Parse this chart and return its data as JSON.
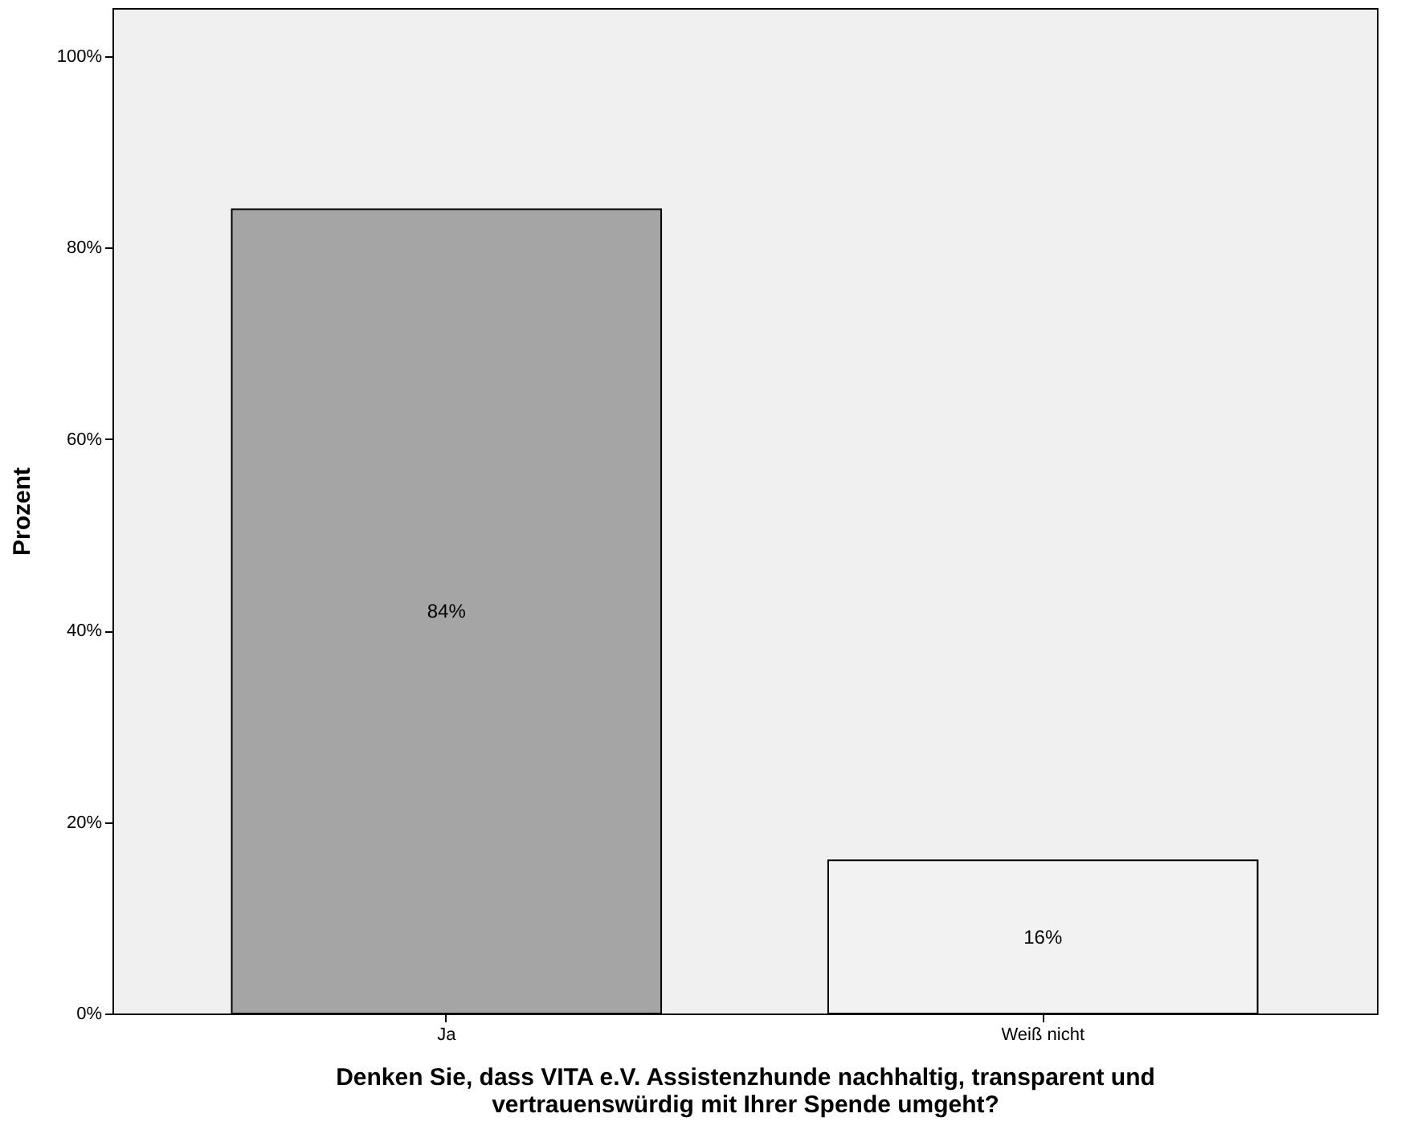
{
  "chart_data": {
    "type": "bar",
    "categories": [
      "Ja",
      "Weiß nicht"
    ],
    "values": [
      84,
      16
    ],
    "colors": [
      "#a5a5a5",
      "#f2f2f2"
    ],
    "value_labels": [
      "84%",
      "16%"
    ],
    "xlabel": "Denken Sie, dass VITA e.V. Assistenzhunde nachhaltig, transparent und vertrauenswürdig mit Ihrer Spende umgeht?",
    "ylabel": "Prozent",
    "ylim": [
      0,
      105
    ],
    "yticks": [
      {
        "value": 0,
        "label": "0%"
      },
      {
        "value": 20,
        "label": "20%"
      },
      {
        "value": 40,
        "label": "40%"
      },
      {
        "value": 60,
        "label": "60%"
      },
      {
        "value": 80,
        "label": "80%"
      },
      {
        "value": 100,
        "label": "100%"
      }
    ],
    "grid": false
  }
}
